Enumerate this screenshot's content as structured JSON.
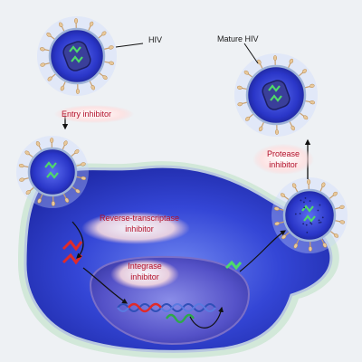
{
  "labels": {
    "hiv": "HIV",
    "mature_hiv": "Mature HIV",
    "entry_inhibitor": "Entry inhibitor",
    "rt_inhibitor_line1": "Reverse-transcriptase",
    "rt_inhibitor_line2": "inhibitor",
    "integrase_line1": "Integrase",
    "integrase_line2": "inhibitor",
    "protease_line1": "Protease",
    "protease_line2": "inhibitor"
  },
  "colors": {
    "background": "#eef1f4",
    "cell_fill": "#2f3fd0",
    "membrane": "#8fa6c8",
    "nucleus": "#3b3ab0",
    "virion": "#2a36c8",
    "capsid": "#3a3f9a",
    "rna_green": "#4fd96a",
    "rna_red": "#e02a2a",
    "dna_blue": "#3a7ad8",
    "label_red": "#b3102a",
    "label_glow": "#ffd2d2",
    "spike": "#e8c89a"
  }
}
